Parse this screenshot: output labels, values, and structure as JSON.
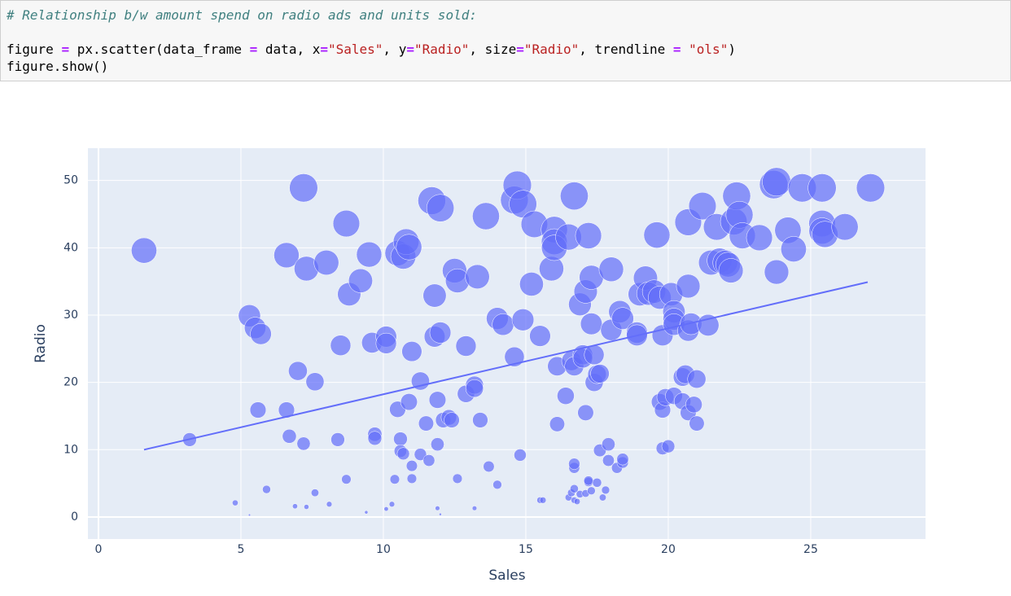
{
  "code": {
    "comment": "# Relationship b/w amount spend on radio ads and units sold:",
    "lines": [
      [
        "figure ",
        "=",
        " px.scatter(data_frame ",
        "=",
        " data, x",
        "=",
        "\"Sales\"",
        ", y",
        "=",
        "\"Radio\"",
        ", size",
        "=",
        "\"Radio\"",
        ", trendline ",
        "=",
        " ",
        "\"ols\"",
        ")"
      ],
      [
        "figure.show()"
      ]
    ]
  },
  "chart_data": {
    "type": "scatter",
    "x_label": "Sales",
    "y_label": "Radio",
    "color": "#636efa",
    "size_by_y": true,
    "grid": true,
    "xlim": [
      -0.37,
      29.03
    ],
    "ylim": [
      -3.27,
      54.8
    ],
    "xticks": [
      0,
      5,
      10,
      15,
      20,
      25
    ],
    "yticks": [
      0,
      10,
      20,
      30,
      40,
      50
    ],
    "x": [
      1.6,
      3.2,
      4.8,
      5.3,
      5.3,
      5.5,
      5.7,
      5.6,
      5.9,
      6.6,
      6.6,
      6.7,
      6.9,
      7.0,
      7.2,
      7.3,
      7.2,
      7.3,
      7.6,
      7.6,
      8.0,
      8.1,
      8.4,
      8.5,
      8.7,
      8.7,
      8.8,
      9.2,
      9.4,
      9.5,
      9.6,
      9.7,
      9.7,
      10.1,
      10.1,
      10.1,
      10.3,
      10.4,
      10.5,
      10.5,
      10.6,
      10.6,
      10.7,
      10.8,
      10.9,
      10.7,
      10.9,
      11.0,
      11.0,
      11.0,
      11.3,
      11.3,
      11.5,
      11.6,
      11.7,
      11.8,
      11.8,
      11.9,
      11.9,
      11.9,
      12.0,
      12.0,
      12.0,
      12.1,
      12.3,
      12.4,
      12.5,
      12.6,
      12.6,
      12.9,
      12.9,
      13.2,
      13.2,
      13.2,
      13.3,
      13.4,
      13.6,
      13.7,
      14.0,
      14.0,
      14.2,
      14.6,
      14.6,
      14.7,
      14.8,
      14.9,
      14.9,
      15.2,
      15.3,
      15.5,
      15.6,
      15.5,
      15.9,
      16.0,
      16.0,
      16.0,
      16.1,
      16.1,
      16.4,
      16.5,
      16.6,
      16.7,
      16.5,
      16.6,
      16.7,
      16.7,
      16.7,
      16.7,
      16.7,
      16.8,
      16.9,
      16.9,
      17.0,
      17.0,
      17.1,
      17.1,
      17.1,
      17.2,
      17.2,
      17.2,
      17.3,
      17.3,
      17.3,
      17.4,
      17.4,
      17.5,
      17.5,
      17.6,
      17.6,
      17.7,
      17.8,
      17.9,
      17.9,
      18.0,
      18.0,
      18.2,
      18.3,
      18.4,
      18.4,
      18.4,
      18.9,
      18.9,
      19.0,
      19.2,
      19.3,
      19.5,
      19.6,
      19.7,
      19.7,
      19.8,
      19.8,
      19.8,
      19.9,
      20.0,
      20.1,
      20.2,
      20.2,
      20.2,
      20.2,
      20.5,
      20.5,
      20.6,
      20.7,
      20.7,
      20.7,
      20.7,
      20.8,
      20.9,
      21.0,
      21.0,
      21.2,
      21.4,
      21.5,
      21.7,
      21.8,
      22.0,
      22.1,
      22.2,
      22.3,
      22.4,
      22.5,
      22.6,
      23.2,
      23.7,
      23.8,
      23.8,
      24.2,
      24.4,
      24.7,
      25.4,
      25.4,
      25.4,
      25.5,
      26.2,
      27.1
    ],
    "y": [
      39.6,
      11.5,
      2.1,
      0.3,
      29.9,
      28.1,
      27.2,
      15.9,
      4.1,
      38.9,
      15.9,
      12.0,
      1.6,
      21.7,
      48.9,
      36.9,
      10.9,
      1.5,
      20.1,
      3.6,
      37.8,
      1.9,
      11.5,
      25.5,
      43.6,
      5.6,
      33.1,
      35.1,
      0.7,
      39.0,
      25.9,
      12.3,
      11.7,
      26.8,
      25.8,
      1.2,
      1.9,
      5.6,
      16.0,
      39.2,
      11.6,
      9.8,
      38.7,
      40.9,
      40.1,
      9.4,
      17.1,
      7.6,
      5.7,
      24.6,
      20.2,
      9.3,
      13.9,
      8.4,
      47.0,
      32.9,
      26.8,
      17.4,
      10.8,
      1.3,
      27.4,
      45.9,
      0.4,
      14.4,
      14.8,
      14.4,
      36.6,
      35.1,
      5.7,
      25.4,
      18.3,
      19.6,
      19.1,
      1.3,
      35.7,
      14.4,
      44.7,
      7.5,
      29.5,
      4.8,
      28.6,
      23.8,
      47.1,
      49.3,
      9.2,
      29.3,
      46.5,
      34.6,
      43.5,
      2.5,
      2.5,
      26.9,
      36.9,
      42.7,
      40.9,
      40.0,
      22.4,
      13.8,
      18.0,
      2.9,
      3.6,
      47.7,
      41.6,
      23.2,
      22.4,
      2.5,
      4.2,
      7.3,
      7.9,
      2.3,
      3.4,
      31.6,
      24.1,
      23.6,
      3.5,
      15.5,
      33.5,
      41.8,
      5.2,
      5.4,
      35.6,
      28.7,
      3.9,
      24.1,
      20.0,
      5.1,
      21.2,
      21.3,
      9.9,
      2.9,
      4.0,
      8.4,
      10.8,
      36.8,
      27.8,
      7.3,
      30.5,
      29.5,
      8.1,
      8.6,
      27.4,
      27.0,
      33.1,
      35.5,
      33.2,
      33.5,
      41.9,
      32.6,
      17.1,
      27.0,
      10.2,
      15.9,
      17.8,
      10.5,
      33.1,
      18.0,
      30.5,
      29.4,
      28.6,
      17.2,
      20.8,
      21.2,
      43.8,
      27.7,
      34.3,
      15.5,
      28.7,
      16.7,
      20.5,
      13.9,
      46.2,
      28.5,
      37.8,
      43.1,
      38.1,
      37.8,
      37.5,
      36.6,
      43.9,
      47.7,
      44.9,
      41.8,
      41.5,
      49.4,
      49.8,
      36.4,
      42.6,
      39.8,
      48.9,
      48.9,
      43.6,
      42.5,
      42.0,
      43.1,
      48.9
    ],
    "trendline": {
      "x": [
        1.6,
        27.0
      ],
      "y": [
        10.0,
        34.9
      ],
      "color": "#636efa"
    }
  }
}
